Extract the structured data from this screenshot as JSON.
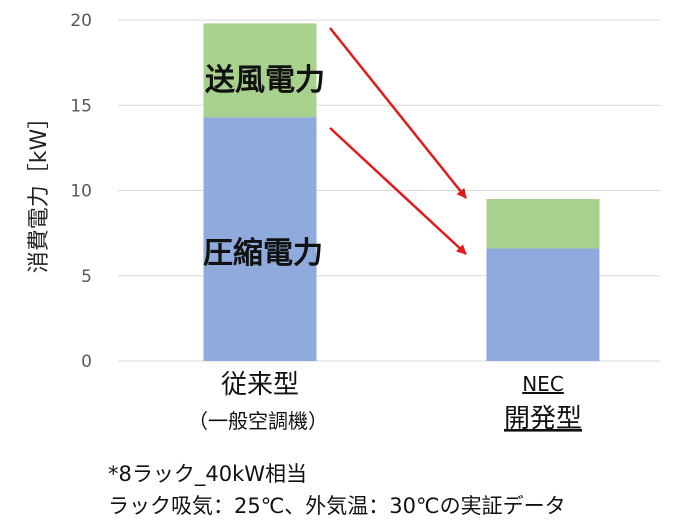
{
  "chart_data": {
    "type": "bar",
    "stacked": true,
    "title": "",
    "ylabel": "消費電力［kW］",
    "ylim": [
      0,
      20
    ],
    "yticks": [
      0,
      5,
      10,
      15,
      20
    ],
    "grid": true,
    "categories": [
      {
        "label_line1": "従来型",
        "label_line2": "（一般空調機）"
      },
      {
        "label_line1": "NEC",
        "label_line2": "開発型"
      }
    ],
    "series": [
      {
        "name": "圧縮電力",
        "color": "#8faadc",
        "values": [
          14.3,
          6.6
        ]
      },
      {
        "name": "送風電力",
        "color": "#a9d18e",
        "values": [
          5.5,
          2.9
        ]
      }
    ],
    "annotation_arrow_color": "#e31a1c"
  },
  "notes": {
    "line1": "*8ラック_40kW相当",
    "line2": "ラック吸気：25℃、外気温：30℃の実証データ"
  }
}
